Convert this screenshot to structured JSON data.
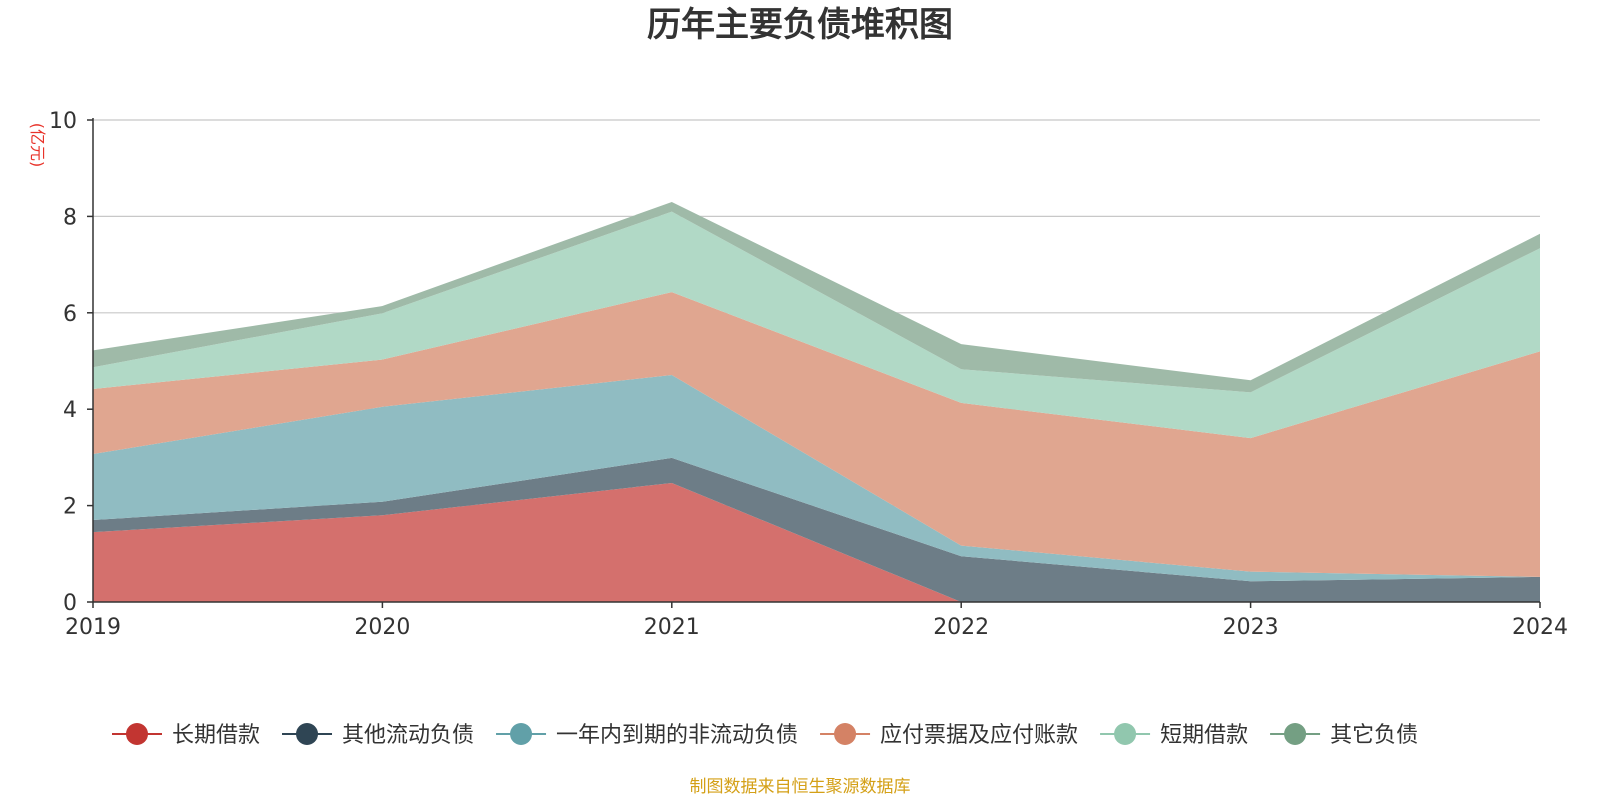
{
  "chart_data": {
    "type": "area",
    "stacked": true,
    "title": "历年主要负债堆积图",
    "ylabel": "(亿元)",
    "xlabel": "",
    "categories": [
      "2019",
      "2020",
      "2021",
      "2022",
      "2023",
      "2024"
    ],
    "ylim": [
      0,
      10
    ],
    "yticks": [
      "0",
      "2",
      "4",
      "6",
      "8",
      "10"
    ],
    "grid": true,
    "legend_position": "bottom",
    "series": [
      {
        "name": "长期借款",
        "color": "#c23531",
        "fill": "#d4706d",
        "values": [
          1.45,
          1.8,
          2.47,
          0.0,
          0.0,
          0.0
        ]
      },
      {
        "name": "其他流动负债",
        "color": "#2f4554",
        "fill": "#6d7d87",
        "values": [
          0.25,
          0.28,
          0.52,
          0.95,
          0.43,
          0.52
        ]
      },
      {
        "name": "一年内到期的非流动负债",
        "color": "#61a0a8",
        "fill": "#90bcc2",
        "values": [
          1.37,
          1.97,
          1.72,
          0.22,
          0.2,
          0.0
        ]
      },
      {
        "name": "应付票据及应付账款",
        "color": "#d48265",
        "fill": "#e0a690",
        "values": [
          1.35,
          0.98,
          1.72,
          2.96,
          2.77,
          4.68
        ]
      },
      {
        "name": "短期借款",
        "color": "#91c7ae",
        "fill": "#b1d9c6",
        "values": [
          0.45,
          0.96,
          1.67,
          0.7,
          0.95,
          2.14
        ]
      },
      {
        "name": "其它负债",
        "color": "#749f83",
        "fill": "#9fbaa8",
        "values": [
          0.35,
          0.15,
          0.2,
          0.52,
          0.25,
          0.3
        ]
      }
    ]
  },
  "unit_color": "#e8332a",
  "source": {
    "text": "制图数据来自恒生聚源数据库",
    "color": "#d4a017"
  }
}
